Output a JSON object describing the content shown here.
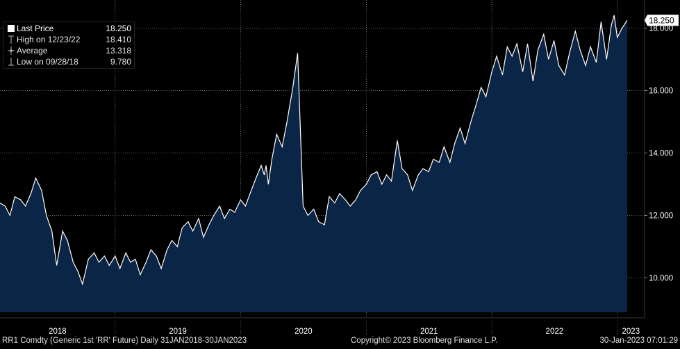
{
  "legend": {
    "last_price": {
      "label": "Last Price",
      "value": "18.250"
    },
    "high": {
      "label": "High on 12/23/22",
      "value": "18.410"
    },
    "average": {
      "label": "Average",
      "value": "13.318"
    },
    "low": {
      "label": "Low on 09/28/18",
      "value": "9.780"
    }
  },
  "price_tag": "18.250",
  "footer": {
    "left": "RR1 Comdty (Generic 1st 'RR' Future)  Daily 31JAN2018-30JAN2023",
    "center": "Copyright© 2023 Bloomberg Finance L.P.",
    "right": "30-Jan-2023 07:01:29"
  },
  "colors": {
    "background": "#000000",
    "fill": "#0b2547",
    "line": "#ffffff",
    "grid": "#6a6a6a",
    "tag_bg": "#ffffff",
    "tag_text": "#000000"
  },
  "chart_data": {
    "type": "area",
    "ylim": [
      8.9,
      18.9
    ],
    "y_ticks": [
      10,
      12,
      14,
      16,
      18
    ],
    "y_tick_labels": [
      "10.000",
      "12.000",
      "14.000",
      "16.000",
      "18.000"
    ],
    "x_range": [
      "2018-01-31",
      "2023-01-30"
    ],
    "x_tick_labels": [
      "2018",
      "2019",
      "2020",
      "2021",
      "2022",
      "2023"
    ],
    "grid": true,
    "series": [
      {
        "x": [
          "2018-01-31",
          "2018-02-15",
          "2018-03-01",
          "2018-03-15",
          "2018-04-01",
          "2018-04-15",
          "2018-05-01",
          "2018-05-15",
          "2018-06-01",
          "2018-06-15",
          "2018-07-01",
          "2018-07-15",
          "2018-08-01",
          "2018-08-15",
          "2018-09-01",
          "2018-09-15",
          "2018-09-28",
          "2018-10-15",
          "2018-11-01",
          "2018-11-15",
          "2018-12-01",
          "2018-12-15",
          "2019-01-01",
          "2019-01-15",
          "2019-02-01",
          "2019-02-15",
          "2019-03-01",
          "2019-03-15",
          "2019-04-01",
          "2019-04-15",
          "2019-05-01",
          "2019-05-15",
          "2019-06-01",
          "2019-06-15",
          "2019-07-01",
          "2019-07-15",
          "2019-08-01",
          "2019-08-15",
          "2019-09-01",
          "2019-09-15",
          "2019-10-01",
          "2019-10-15",
          "2019-11-01",
          "2019-11-15",
          "2019-12-01",
          "2019-12-15",
          "2020-01-01",
          "2020-01-15",
          "2020-02-01",
          "2020-02-15",
          "2020-03-01",
          "2020-03-10",
          "2020-03-15",
          "2020-03-22",
          "2020-04-01",
          "2020-04-15",
          "2020-05-01",
          "2020-05-15",
          "2020-06-01",
          "2020-06-15",
          "2020-07-01",
          "2020-07-15",
          "2020-08-01",
          "2020-08-15",
          "2020-09-01",
          "2020-09-15",
          "2020-10-01",
          "2020-10-15",
          "2020-11-01",
          "2020-11-15",
          "2020-12-01",
          "2020-12-15",
          "2021-01-01",
          "2021-01-15",
          "2021-02-01",
          "2021-02-15",
          "2021-03-01",
          "2021-03-15",
          "2021-04-01",
          "2021-04-15",
          "2021-05-01",
          "2021-05-15",
          "2021-06-01",
          "2021-06-15",
          "2021-07-01",
          "2021-07-15",
          "2021-08-01",
          "2021-08-15",
          "2021-09-01",
          "2021-09-15",
          "2021-10-01",
          "2021-10-15",
          "2021-11-01",
          "2021-11-15",
          "2021-12-01",
          "2021-12-15",
          "2022-01-01",
          "2022-01-15",
          "2022-02-01",
          "2022-02-15",
          "2022-03-01",
          "2022-03-15",
          "2022-04-01",
          "2022-04-15",
          "2022-05-01",
          "2022-05-15",
          "2022-06-01",
          "2022-06-15",
          "2022-07-01",
          "2022-07-15",
          "2022-08-01",
          "2022-08-15",
          "2022-09-01",
          "2022-09-15",
          "2022-10-01",
          "2022-10-15",
          "2022-11-01",
          "2022-11-15",
          "2022-12-01",
          "2022-12-15",
          "2022-12-23",
          "2023-01-01",
          "2023-01-15",
          "2023-01-30"
        ],
        "values": [
          12.4,
          12.3,
          12.0,
          12.6,
          12.5,
          12.3,
          12.7,
          13.2,
          12.8,
          12.0,
          11.5,
          10.4,
          11.5,
          11.2,
          10.5,
          10.2,
          9.8,
          10.6,
          10.8,
          10.5,
          10.7,
          10.4,
          10.7,
          10.3,
          10.8,
          10.5,
          10.6,
          10.1,
          10.5,
          10.9,
          10.7,
          10.3,
          10.9,
          11.2,
          11.0,
          11.6,
          11.8,
          11.5,
          11.9,
          11.3,
          11.7,
          12.0,
          12.3,
          11.9,
          12.2,
          12.1,
          12.5,
          12.3,
          12.8,
          13.2,
          13.6,
          13.3,
          13.6,
          13.0,
          13.8,
          14.6,
          14.2,
          15.0,
          16.1,
          17.2,
          12.3,
          12.0,
          12.2,
          11.8,
          11.7,
          12.6,
          12.4,
          12.7,
          12.5,
          12.3,
          12.5,
          12.8,
          13.0,
          13.3,
          13.4,
          13.0,
          13.3,
          13.1,
          14.4,
          13.5,
          13.3,
          12.8,
          13.3,
          13.5,
          13.4,
          13.8,
          13.7,
          14.2,
          13.7,
          14.3,
          14.8,
          14.3,
          15.0,
          15.5,
          16.1,
          15.8,
          16.6,
          17.1,
          16.5,
          17.4,
          17.1,
          17.5,
          16.6,
          17.5,
          16.3,
          17.3,
          17.8,
          17.0,
          17.6,
          16.8,
          16.5,
          17.2,
          17.9,
          17.3,
          16.8,
          17.4,
          16.9,
          18.2,
          17.0,
          18.1,
          18.41,
          17.7,
          18.0,
          18.25
        ]
      }
    ]
  }
}
